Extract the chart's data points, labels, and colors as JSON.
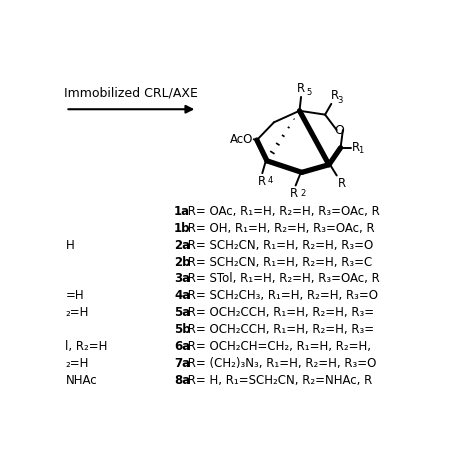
{
  "background_color": "#ffffff",
  "arrow_label": "Immobilized CRL/AXE",
  "lines_right": [
    {
      "bold": "1a",
      "text": " R= OAc, R₁=H, R₂=H, R₃=OAc, R"
    },
    {
      "bold": "1b",
      "text": " R= OH, R₁=H, R₂=H, R₃=OAc, R"
    },
    {
      "bold": "2a",
      "text": " R= SCH₂CN, R₁=H, R₂=H, R₃=O"
    },
    {
      "bold": "2b",
      "text": " R= SCH₂CN, R₁=H, R₂=H, R₃=C"
    },
    {
      "bold": "3a",
      "text": " R= STol, R₁=H, R₂=H, R₃=OAc, R"
    },
    {
      "bold": "4a",
      "text": " R= SCH₂CH₃, R₁=H, R₂=H, R₃=O"
    },
    {
      "bold": "5a",
      "text": " R= OCH₂CCH, R₁=H, R₂=H, R₃="
    },
    {
      "bold": "5b",
      "text": " R= OCH₂CCH, R₁=H, R₂=H, R₃="
    },
    {
      "bold": "6a",
      "text": " R= OCH₂CH=CH₂, R₁=H, R₂=H,"
    },
    {
      "bold": "7a",
      "text": " R= (CH₂)₃N₃, R₁=H, R₂=H, R₃=O"
    },
    {
      "bold": "8a",
      "text": " R= H, R₁=SCH₂CN, R₂=NHAc, R"
    }
  ],
  "lines_left": [
    "",
    "",
    "H",
    "",
    "",
    "=H",
    "₂=H",
    "",
    "l, R₂=H",
    "₂=H",
    "NHAc"
  ],
  "fontsize": 8.5,
  "fig_width": 4.74,
  "fig_height": 4.74
}
